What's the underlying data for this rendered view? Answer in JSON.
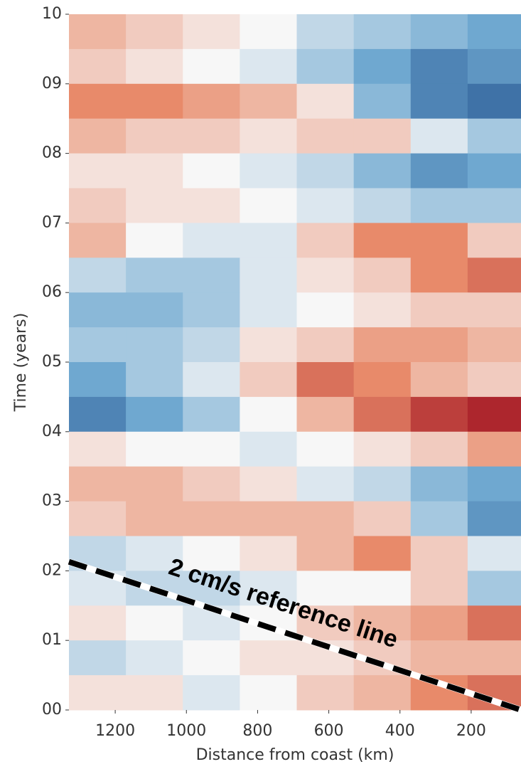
{
  "chart_data": {
    "type": "heatmap",
    "xlabel": "Distance from coast (km)",
    "ylabel": "Time (years)",
    "xbins": [
      1330,
      1170,
      1010,
      850,
      690,
      530,
      370,
      210,
      60
    ],
    "ybins": [
      10,
      9.5,
      9,
      8.5,
      8,
      7.5,
      7,
      6.5,
      6,
      5.5,
      5,
      4.5,
      4,
      3.5,
      3,
      2.5,
      2,
      1.5,
      1,
      0.5,
      0
    ],
    "z": [
      [
        0.3,
        0.2,
        0.1,
        0,
        -0.2,
        -0.3,
        -0.4,
        -0.5
      ],
      [
        0.2,
        0.1,
        0,
        -0.1,
        -0.3,
        -0.5,
        -0.7,
        -0.6
      ],
      [
        0.5,
        0.5,
        0.4,
        0.3,
        0.1,
        -0.4,
        -0.7,
        -0.8
      ],
      [
        0.3,
        0.2,
        0.2,
        0.1,
        0.2,
        0.2,
        -0.1,
        -0.3
      ],
      [
        0.1,
        0.1,
        0,
        -0.1,
        -0.2,
        -0.4,
        -0.6,
        -0.5
      ],
      [
        0.2,
        0.1,
        0.1,
        0,
        -0.1,
        -0.2,
        -0.3,
        -0.3
      ],
      [
        0.3,
        0,
        -0.1,
        -0.1,
        0.2,
        0.5,
        0.5,
        0.2
      ],
      [
        -0.2,
        -0.3,
        -0.3,
        -0.1,
        0.1,
        0.2,
        0.5,
        0.6
      ],
      [
        -0.4,
        -0.4,
        -0.3,
        -0.1,
        0,
        0.1,
        0.2,
        0.2
      ],
      [
        -0.3,
        -0.3,
        -0.2,
        0.1,
        0.2,
        0.4,
        0.4,
        0.3
      ],
      [
        -0.5,
        -0.3,
        -0.1,
        0.2,
        0.6,
        0.5,
        0.3,
        0.2
      ],
      [
        -0.7,
        -0.5,
        -0.3,
        0,
        0.3,
        0.6,
        0.8,
        0.9
      ],
      [
        0.1,
        0,
        0,
        -0.1,
        0,
        0.1,
        0.2,
        0.4
      ],
      [
        0.3,
        0.3,
        0.2,
        0.1,
        -0.1,
        -0.2,
        -0.4,
        -0.5
      ],
      [
        0.2,
        0.3,
        0.3,
        0.3,
        0.3,
        0.2,
        -0.3,
        -0.6
      ],
      [
        -0.2,
        -0.1,
        0,
        0.1,
        0.3,
        0.5,
        0.2,
        -0.1
      ],
      [
        -0.1,
        -0.2,
        -0.2,
        -0.1,
        0,
        0,
        0.2,
        -0.3
      ],
      [
        0.1,
        0,
        -0.1,
        0,
        0.2,
        0.3,
        0.4,
        0.6
      ],
      [
        -0.2,
        -0.1,
        0,
        0.1,
        0.1,
        0.2,
        0.3,
        0.3
      ],
      [
        0.1,
        0.1,
        -0.1,
        0,
        0.2,
        0.3,
        0.5,
        0.6
      ]
    ],
    "vlim": [
      -1,
      1
    ],
    "colormap": [
      "#1f4e8c",
      "#6fa8d0",
      "#f7f7f7",
      "#e88a6a",
      "#9e0d1e"
    ],
    "xlim": [
      1330,
      60
    ],
    "ylim": [
      0,
      10
    ],
    "xticks": [
      1200,
      1000,
      800,
      600,
      400,
      200
    ],
    "yticks": [
      {
        "value": 0,
        "label": "00"
      },
      {
        "value": 1,
        "label": "01"
      },
      {
        "value": 2,
        "label": "02"
      },
      {
        "value": 3,
        "label": "03"
      },
      {
        "value": 4,
        "label": "04"
      },
      {
        "value": 5,
        "label": "05"
      },
      {
        "value": 6,
        "label": "06"
      },
      {
        "value": 7,
        "label": "07"
      },
      {
        "value": 8,
        "label": "08"
      },
      {
        "value": 9,
        "label": "09"
      },
      10
    ],
    "reference_line": {
      "label": "2 cm/s reference line",
      "x": [
        1330,
        60
      ],
      "y": [
        2.13,
        0
      ]
    }
  }
}
